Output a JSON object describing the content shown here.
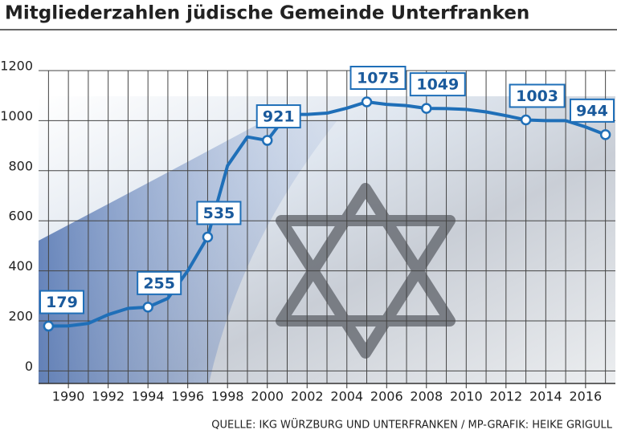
{
  "chart_data": {
    "type": "line",
    "title": "Mitgliederzahlen jüdische Gemeinde Unterfranken",
    "source": "QUELLE: IKG WÜRZBURG UND UNTERFRANKEN / MP-GRAFIK: HEIKE GRIGULL",
    "x": [
      1989,
      1990,
      1991,
      1992,
      1993,
      1994,
      1995,
      1996,
      1997,
      1998,
      1999,
      2000,
      2001,
      2002,
      2003,
      2004,
      2005,
      2006,
      2007,
      2008,
      2009,
      2010,
      2011,
      2012,
      2013,
      2014,
      2015,
      2016,
      2017
    ],
    "series": [
      {
        "color": "#1f6fb8",
        "values": [
          179,
          180,
          190,
          225,
          250,
          255,
          290,
          400,
          535,
          820,
          935,
          921,
          1025,
          1025,
          1030,
          1050,
          1075,
          1065,
          1060,
          1049,
          1048,
          1045,
          1035,
          1020,
          1003,
          1000,
          1000,
          975,
          944
        ],
        "value_labels": [
          "179",
          null,
          null,
          null,
          null,
          "255",
          null,
          null,
          "535",
          null,
          null,
          "921",
          null,
          null,
          null,
          null,
          "1075",
          null,
          null,
          "1049",
          null,
          null,
          null,
          null,
          "1003",
          null,
          null,
          null,
          "944"
        ]
      }
    ],
    "xlim": [
      1988.5,
      2017.5
    ],
    "xticks": [
      1990,
      1992,
      1994,
      1996,
      1998,
      2000,
      2002,
      2004,
      2006,
      2008,
      2010,
      2012,
      2014,
      2016
    ],
    "ylim": [
      -50,
      1200
    ],
    "yticks": [
      0,
      200,
      400,
      600,
      800,
      1000,
      1200
    ],
    "grid": true
  }
}
